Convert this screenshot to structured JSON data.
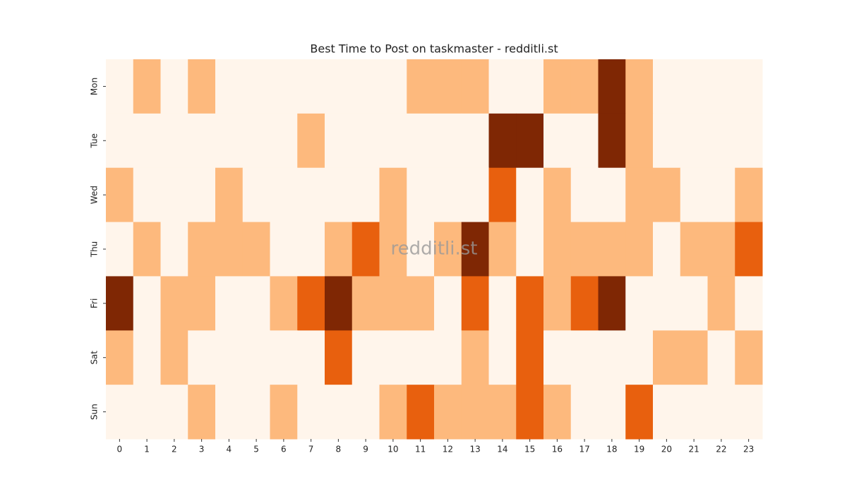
{
  "chart_data": {
    "type": "heatmap",
    "title": "Best Time to Post on taskmaster - redditli.st",
    "watermark": "redditli.st",
    "x_categories": [
      0,
      1,
      2,
      3,
      4,
      5,
      6,
      7,
      8,
      9,
      10,
      11,
      12,
      13,
      14,
      15,
      16,
      17,
      18,
      19,
      20,
      21,
      22,
      23
    ],
    "y_categories": [
      "Mon",
      "Tue",
      "Wed",
      "Thu",
      "Fri",
      "Sat",
      "Sun"
    ],
    "values": [
      [
        0,
        1,
        0,
        1,
        0,
        0,
        0,
        0,
        0,
        0,
        0,
        1,
        1,
        1,
        0,
        0,
        1,
        1,
        3,
        1,
        0,
        0,
        0,
        0
      ],
      [
        0,
        0,
        0,
        0,
        0,
        0,
        0,
        1,
        0,
        0,
        0,
        0,
        0,
        0,
        3,
        3,
        0,
        0,
        3,
        1,
        0,
        0,
        0,
        0
      ],
      [
        1,
        0,
        0,
        0,
        1,
        0,
        0,
        0,
        0,
        0,
        1,
        0,
        0,
        0,
        2,
        0,
        1,
        0,
        0,
        1,
        1,
        0,
        0,
        1
      ],
      [
        0,
        1,
        0,
        1,
        1,
        1,
        0,
        0,
        1,
        2,
        1,
        0,
        1,
        3,
        1,
        0,
        1,
        1,
        1,
        1,
        0,
        1,
        1,
        2
      ],
      [
        3,
        0,
        1,
        1,
        0,
        0,
        1,
        2,
        3,
        1,
        1,
        1,
        0,
        2,
        0,
        2,
        1,
        2,
        3,
        0,
        0,
        0,
        1,
        0
      ],
      [
        1,
        0,
        1,
        0,
        0,
        0,
        0,
        0,
        2,
        0,
        0,
        0,
        0,
        1,
        0,
        2,
        0,
        0,
        0,
        0,
        1,
        1,
        0,
        1
      ],
      [
        0,
        0,
        0,
        1,
        0,
        0,
        1,
        0,
        0,
        0,
        1,
        2,
        1,
        1,
        1,
        2,
        1,
        0,
        0,
        2,
        0,
        0,
        0,
        0
      ]
    ],
    "colormap": [
      "#fff5eb",
      "#fdb97d",
      "#e8600e",
      "#7f2704"
    ]
  }
}
